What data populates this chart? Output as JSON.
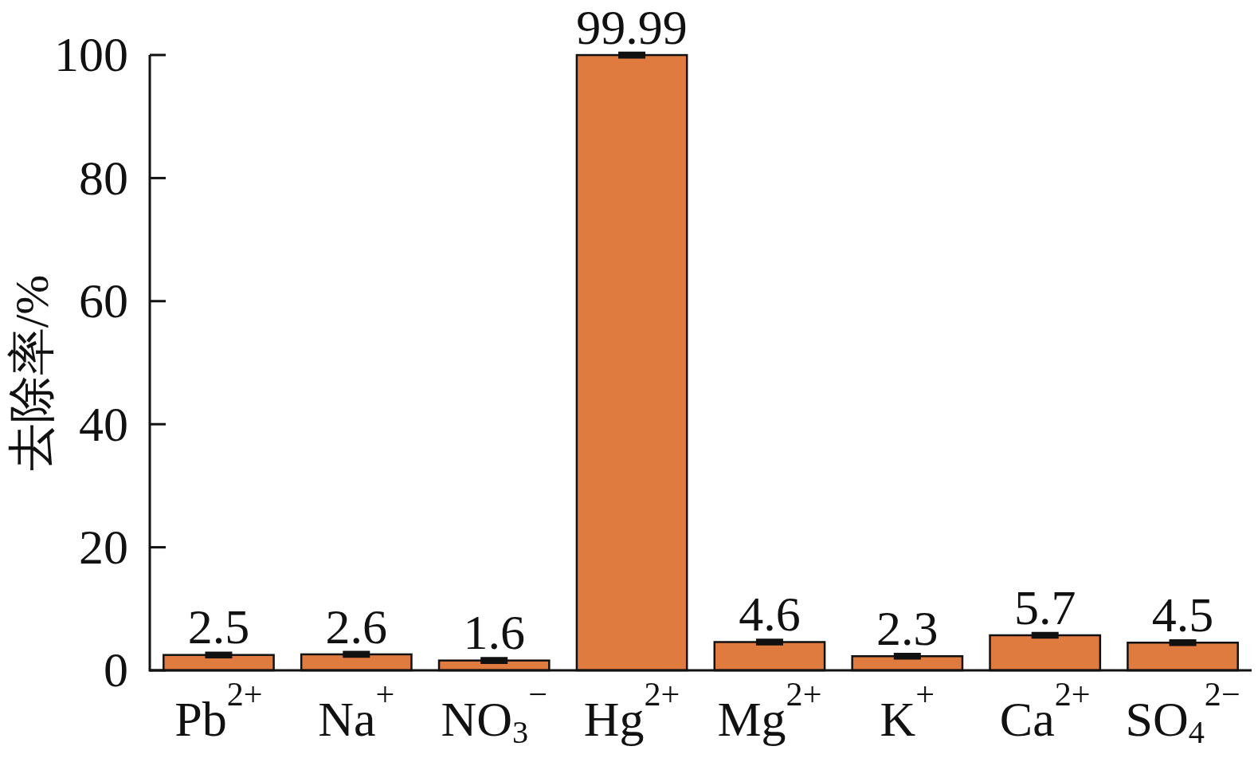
{
  "chart_data": {
    "type": "bar",
    "ylabel": "去除率/%",
    "categories": [
      "Pb$^{2+}$",
      "Na$^{+}$",
      "NO$_{3}$$^{−}$",
      "Hg$^{2+}$",
      "Mg$^{2+}$",
      "K$^{+}$",
      "Ca$^{2+}$",
      "SO$_{4}$$^{2−}$"
    ],
    "values": [
      2.5,
      2.6,
      1.6,
      99.99,
      4.6,
      2.3,
      5.7,
      4.5
    ],
    "errors": [
      0.3,
      0.3,
      0.3,
      0.3,
      0.3,
      0.3,
      0.3,
      0.3
    ],
    "color": "#e07b40",
    "ylim": [
      0,
      100
    ],
    "yticks": [
      0,
      20,
      40,
      60,
      80,
      100
    ],
    "data_labels": true
  }
}
